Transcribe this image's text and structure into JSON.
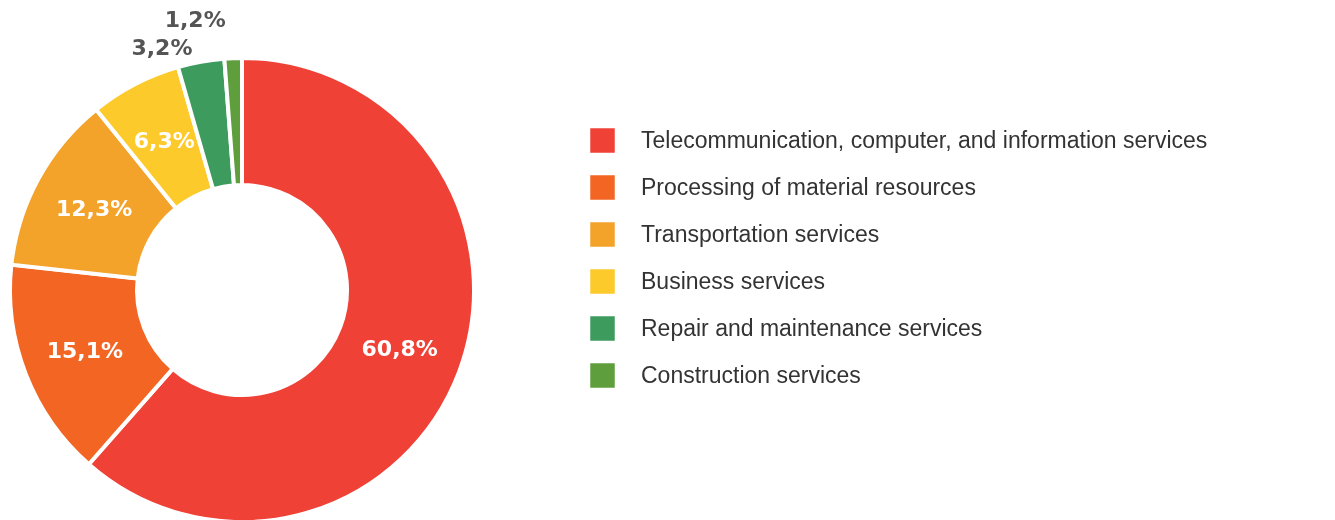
{
  "chart_data": {
    "type": "donut",
    "categories": [
      "Telecommunication, computer, and information services",
      "Processing of material resources",
      "Transportation services",
      "Business services",
      "Repair and maintenance services",
      "Construction services"
    ],
    "values": [
      60.8,
      15.1,
      12.3,
      6.3,
      3.2,
      1.2
    ],
    "value_labels": [
      "60,8%",
      "15,1%",
      "12,3%",
      "6,3%",
      "3,2%",
      "1,2%"
    ],
    "colors": [
      "#ef4136",
      "#f26522",
      "#f3a22a",
      "#fdca2b",
      "#3d9b5e",
      "#5e9e3c"
    ],
    "legend": "right"
  }
}
